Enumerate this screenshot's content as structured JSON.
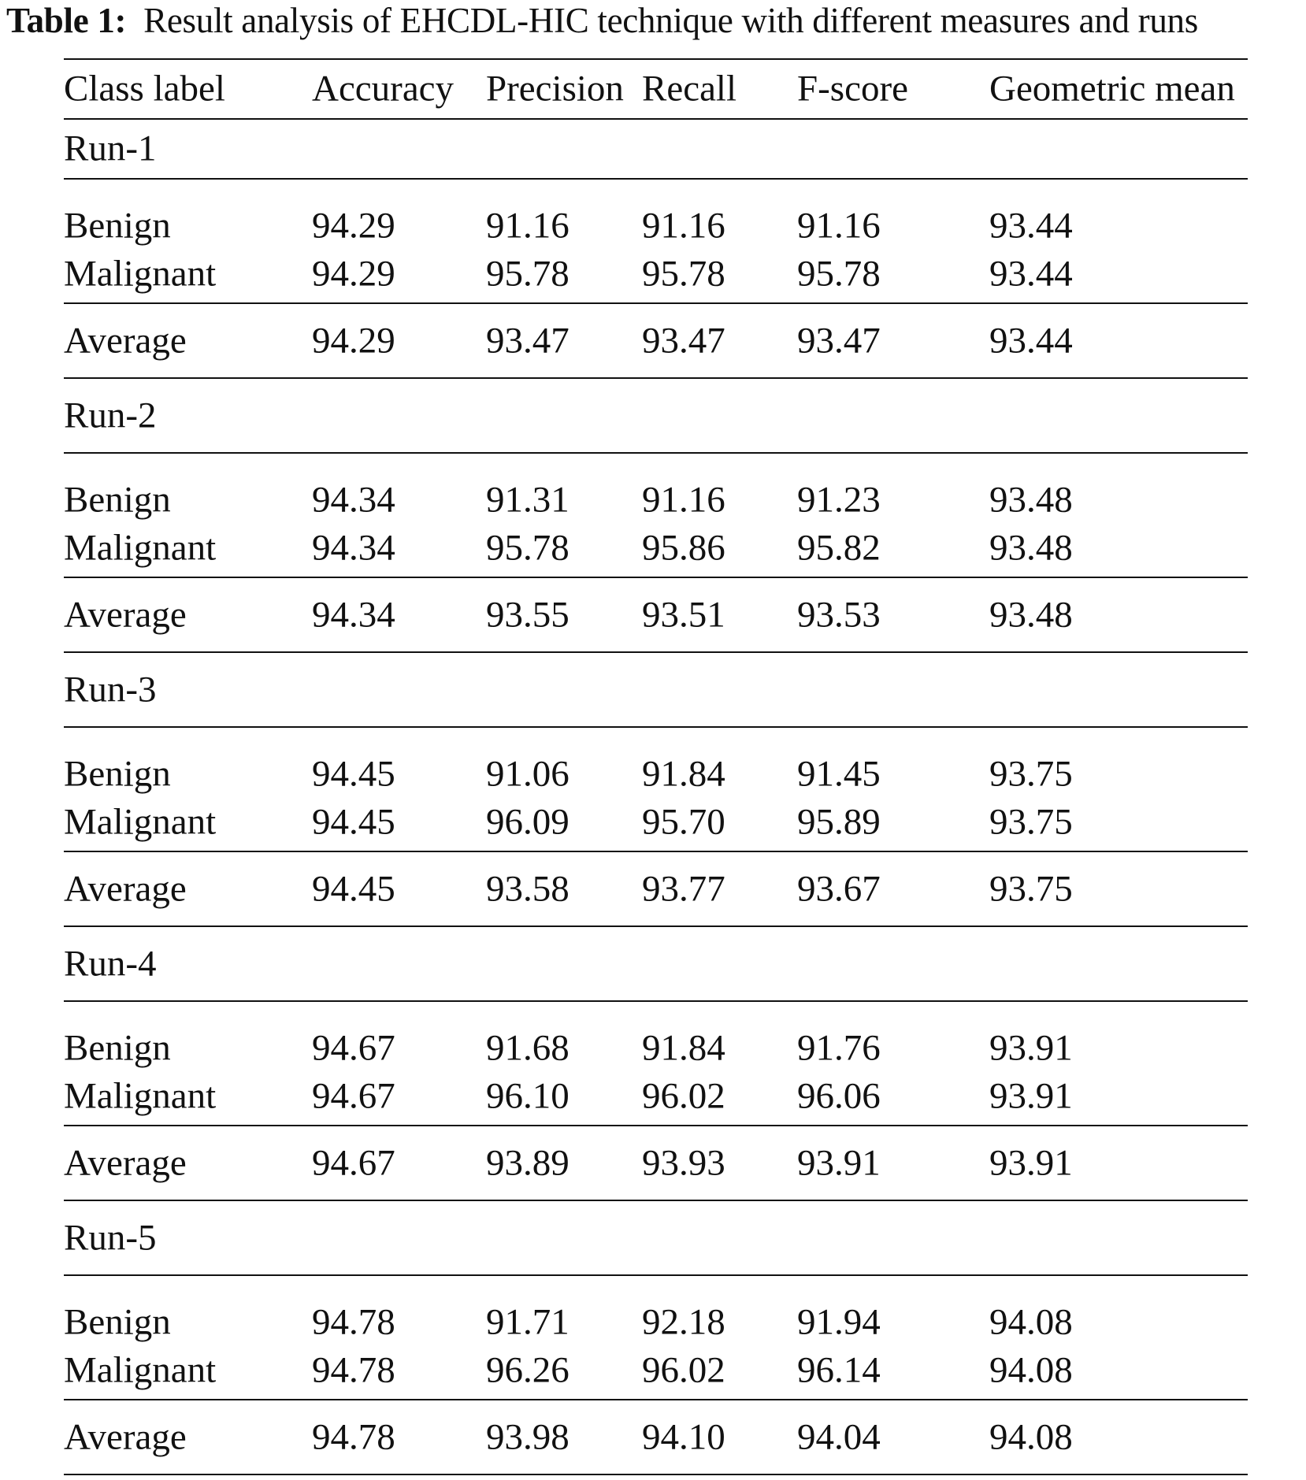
{
  "caption": {
    "label": "Table 1:",
    "text": "Result analysis of EHCDL-HIC technique with different measures and runs"
  },
  "columns": [
    "Class label",
    "Accuracy",
    "Precision",
    "Recall",
    "F-score",
    "Geometric mean"
  ],
  "runs": [
    {
      "label": "Run-1",
      "rows": [
        [
          "Benign",
          "94.29",
          "91.16",
          "91.16",
          "91.16",
          "93.44"
        ],
        [
          "Malignant",
          "94.29",
          "95.78",
          "95.78",
          "95.78",
          "93.44"
        ]
      ],
      "average": [
        "Average",
        "94.29",
        "93.47",
        "93.47",
        "93.47",
        "93.44"
      ]
    },
    {
      "label": "Run-2",
      "rows": [
        [
          "Benign",
          "94.34",
          "91.31",
          "91.16",
          "91.23",
          "93.48"
        ],
        [
          "Malignant",
          "94.34",
          "95.78",
          "95.86",
          "95.82",
          "93.48"
        ]
      ],
      "average": [
        "Average",
        "94.34",
        "93.55",
        "93.51",
        "93.53",
        "93.48"
      ]
    },
    {
      "label": "Run-3",
      "rows": [
        [
          "Benign",
          "94.45",
          "91.06",
          "91.84",
          "91.45",
          "93.75"
        ],
        [
          "Malignant",
          "94.45",
          "96.09",
          "95.70",
          "95.89",
          "93.75"
        ]
      ],
      "average": [
        "Average",
        "94.45",
        "93.58",
        "93.77",
        "93.67",
        "93.75"
      ]
    },
    {
      "label": "Run-4",
      "rows": [
        [
          "Benign",
          "94.67",
          "91.68",
          "91.84",
          "91.76",
          "93.91"
        ],
        [
          "Malignant",
          "94.67",
          "96.10",
          "96.02",
          "96.06",
          "93.91"
        ]
      ],
      "average": [
        "Average",
        "94.67",
        "93.89",
        "93.93",
        "93.91",
        "93.91"
      ]
    },
    {
      "label": "Run-5",
      "rows": [
        [
          "Benign",
          "94.78",
          "91.71",
          "92.18",
          "91.94",
          "94.08"
        ],
        [
          "Malignant",
          "94.78",
          "96.26",
          "96.02",
          "96.14",
          "94.08"
        ]
      ],
      "average": [
        "Average",
        "94.78",
        "93.98",
        "94.10",
        "94.04",
        "94.08"
      ]
    }
  ]
}
